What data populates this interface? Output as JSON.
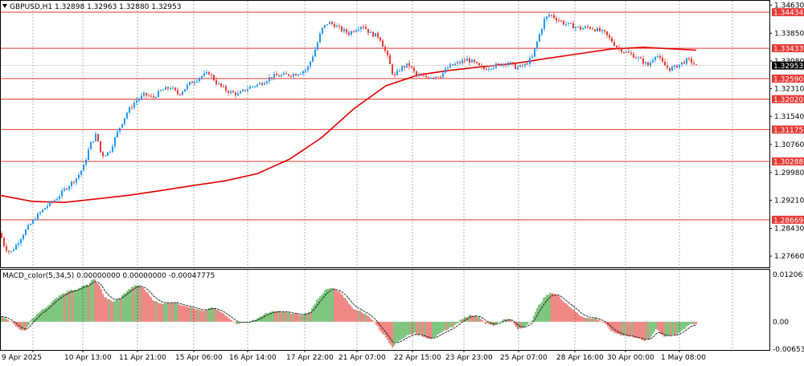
{
  "header": {
    "symbol_line": "GBPUSD,H1  1.32898 1.32963 1.32880 1.32953"
  },
  "chart_data": {
    "type": "candlestick",
    "price_axis": {
      "ylim": [
        1.2735,
        1.3475
      ],
      "tick_labels": [
        "1.34630",
        "1.33850",
        "1.33080",
        "1.32310",
        "1.31540",
        "1.30760",
        "1.29980",
        "1.29210",
        "1.28430",
        "1.27660"
      ],
      "tick_values": [
        1.3463,
        1.3385,
        1.3308,
        1.3231,
        1.3154,
        1.3076,
        1.2998,
        1.2921,
        1.2843,
        1.2766
      ]
    },
    "horizontal_levels": [
      {
        "label": "1.34434",
        "value": 1.34434
      },
      {
        "label": "1.33433",
        "value": 1.33433
      },
      {
        "label": "1.32590",
        "value": 1.3259
      },
      {
        "label": "1.32020",
        "value": 1.3202
      },
      {
        "label": "1.31175",
        "value": 1.31175
      },
      {
        "label": "1.30288",
        "value": 1.30288
      },
      {
        "label": "1.28669",
        "value": 1.28669
      }
    ],
    "current_price": {
      "label": "1.32953",
      "value": 1.32953
    },
    "time_labels": [
      "9 Apr 2025",
      "10 Apr 13:00",
      "11 Apr 21:00",
      "15 Apr 06:00",
      "16 Apr 14:00",
      "17 Apr 22:00",
      "21 Apr 07:00",
      "22 Apr 15:00",
      "23 Apr 23:00",
      "25 Apr 07:00",
      "28 Apr 16:00",
      "30 Apr 00:00",
      "1 May 08:00"
    ],
    "close_path": [
      [
        0,
        1.283
      ],
      [
        6,
        1.279
      ],
      [
        13,
        1.2775
      ],
      [
        21,
        1.28
      ],
      [
        31,
        1.2835
      ],
      [
        45,
        1.2875
      ],
      [
        58,
        1.2905
      ],
      [
        70,
        1.2925
      ],
      [
        82,
        1.2955
      ],
      [
        96,
        1.2985
      ],
      [
        104,
        1.3015
      ],
      [
        112,
        1.3075
      ],
      [
        120,
        1.3105
      ],
      [
        126,
        1.3045
      ],
      [
        136,
        1.3055
      ],
      [
        147,
        1.3115
      ],
      [
        158,
        1.3165
      ],
      [
        168,
        1.3195
      ],
      [
        180,
        1.3215
      ],
      [
        190,
        1.3205
      ],
      [
        200,
        1.3225
      ],
      [
        212,
        1.3235
      ],
      [
        222,
        1.3215
      ],
      [
        236,
        1.3245
      ],
      [
        250,
        1.3265
      ],
      [
        260,
        1.3275
      ],
      [
        270,
        1.3245
      ],
      [
        282,
        1.3225
      ],
      [
        296,
        1.3215
      ],
      [
        310,
        1.3235
      ],
      [
        324,
        1.3245
      ],
      [
        338,
        1.3265
      ],
      [
        352,
        1.3268
      ],
      [
        368,
        1.3272
      ],
      [
        382,
        1.3285
      ],
      [
        393,
        1.3345
      ],
      [
        400,
        1.3395
      ],
      [
        408,
        1.3415
      ],
      [
        416,
        1.3408
      ],
      [
        424,
        1.3395
      ],
      [
        434,
        1.3385
      ],
      [
        443,
        1.3398
      ],
      [
        451,
        1.3408
      ],
      [
        460,
        1.3385
      ],
      [
        472,
        1.3375
      ],
      [
        482,
        1.3318
      ],
      [
        490,
        1.3262
      ],
      [
        498,
        1.3288
      ],
      [
        508,
        1.3298
      ],
      [
        518,
        1.3268
      ],
      [
        528,
        1.3262
      ],
      [
        538,
        1.3265
      ],
      [
        548,
        1.3268
      ],
      [
        558,
        1.3292
      ],
      [
        570,
        1.3302
      ],
      [
        581,
        1.3312
      ],
      [
        590,
        1.3302
      ],
      [
        600,
        1.3285
      ],
      [
        610,
        1.3292
      ],
      [
        622,
        1.3298
      ],
      [
        632,
        1.3305
      ],
      [
        642,
        1.3289
      ],
      [
        652,
        1.3295
      ],
      [
        662,
        1.3318
      ],
      [
        670,
        1.3375
      ],
      [
        677,
        1.3422
      ],
      [
        684,
        1.3438
      ],
      [
        692,
        1.3425
      ],
      [
        702,
        1.3412
      ],
      [
        712,
        1.3405
      ],
      [
        722,
        1.3398
      ],
      [
        732,
        1.3402
      ],
      [
        742,
        1.3395
      ],
      [
        752,
        1.3385
      ],
      [
        760,
        1.3365
      ],
      [
        768,
        1.3345
      ],
      [
        776,
        1.3335
      ],
      [
        786,
        1.3325
      ],
      [
        796,
        1.3312
      ],
      [
        806,
        1.3295
      ],
      [
        816,
        1.3328
      ],
      [
        824,
        1.3302
      ],
      [
        832,
        1.3285
      ],
      [
        840,
        1.3292
      ],
      [
        848,
        1.3302
      ],
      [
        856,
        1.3312
      ],
      [
        866,
        1.3295
      ]
    ],
    "moving_average": [
      [
        0,
        1.2935
      ],
      [
        40,
        1.2918
      ],
      [
        80,
        1.2915
      ],
      [
        120,
        1.2925
      ],
      [
        160,
        1.2935
      ],
      [
        200,
        1.2948
      ],
      [
        240,
        1.2962
      ],
      [
        280,
        1.2975
      ],
      [
        320,
        1.2995
      ],
      [
        360,
        1.3035
      ],
      [
        400,
        1.3095
      ],
      [
        440,
        1.3175
      ],
      [
        480,
        1.3239
      ],
      [
        520,
        1.3269
      ],
      [
        560,
        1.3282
      ],
      [
        600,
        1.3292
      ],
      [
        640,
        1.3301
      ],
      [
        680,
        1.3315
      ],
      [
        720,
        1.3328
      ],
      [
        760,
        1.3341
      ],
      [
        800,
        1.3346
      ],
      [
        840,
        1.3341
      ],
      [
        866,
        1.3338
      ]
    ],
    "macd": {
      "label": "MACD_color(5,34,5) 0.00000000 0.00000000 -0.00047775",
      "ylim": [
        -0.00653,
        0.012061
      ],
      "tick_labels": [
        "0.0120612",
        "0.00",
        "-0.0065300"
      ],
      "tick_values": [
        0.0120612,
        0.0,
        -0.00653
      ],
      "histogram_path": [
        [
          0,
          0.0012
        ],
        [
          8,
          0.0009
        ],
        [
          16,
          -0.0004
        ],
        [
          24,
          -0.0018
        ],
        [
          32,
          -0.0022
        ],
        [
          38,
          0.0002
        ],
        [
          46,
          0.0018
        ],
        [
          56,
          0.0032
        ],
        [
          66,
          0.0048
        ],
        [
          76,
          0.0064
        ],
        [
          86,
          0.0072
        ],
        [
          96,
          0.0076
        ],
        [
          104,
          0.0083
        ],
        [
          110,
          0.0086
        ],
        [
          114,
          0.0095
        ],
        [
          118,
          0.0098
        ],
        [
          124,
          0.0082
        ],
        [
          130,
          0.0058
        ],
        [
          140,
          0.0046
        ],
        [
          150,
          0.0056
        ],
        [
          158,
          0.0072
        ],
        [
          166,
          0.0082
        ],
        [
          174,
          0.0085
        ],
        [
          182,
          0.0071
        ],
        [
          190,
          0.0052
        ],
        [
          198,
          0.0042
        ],
        [
          208,
          0.0044
        ],
        [
          216,
          0.0046
        ],
        [
          224,
          0.004
        ],
        [
          234,
          0.0036
        ],
        [
          244,
          0.0029
        ],
        [
          254,
          0.0024
        ],
        [
          262,
          0.0033
        ],
        [
          270,
          0.0028
        ],
        [
          278,
          0.0018
        ],
        [
          286,
          0.0008
        ],
        [
          294,
          -0.0004
        ],
        [
          304,
          -0.0002
        ],
        [
          314,
          0.0002
        ],
        [
          324,
          0.0012
        ],
        [
          334,
          0.0022
        ],
        [
          346,
          0.0024
        ],
        [
          356,
          0.0022
        ],
        [
          366,
          0.0018
        ],
        [
          376,
          0.0015
        ],
        [
          386,
          0.0024
        ],
        [
          396,
          0.0056
        ],
        [
          406,
          0.0075
        ],
        [
          414,
          0.0078
        ],
        [
          422,
          0.0068
        ],
        [
          430,
          0.0054
        ],
        [
          438,
          0.0032
        ],
        [
          446,
          0.0026
        ],
        [
          456,
          0.0016
        ],
        [
          464,
          0.0004
        ],
        [
          472,
          -0.0018
        ],
        [
          480,
          -0.0036
        ],
        [
          488,
          -0.0058
        ],
        [
          496,
          -0.0044
        ],
        [
          506,
          -0.0032
        ],
        [
          516,
          -0.0026
        ],
        [
          526,
          -0.0034
        ],
        [
          536,
          -0.0039
        ],
        [
          546,
          -0.003
        ],
        [
          556,
          -0.0018
        ],
        [
          566,
          -0.0008
        ],
        [
          576,
          0.0008
        ],
        [
          586,
          0.0017
        ],
        [
          596,
          0.0012
        ],
        [
          604,
          -0.0004
        ],
        [
          614,
          -0.0009
        ],
        [
          624,
          0.0004
        ],
        [
          634,
          0.0008
        ],
        [
          644,
          -0.0018
        ],
        [
          652,
          -0.0013
        ],
        [
          662,
          0.0006
        ],
        [
          670,
          0.0038
        ],
        [
          678,
          0.0058
        ],
        [
          686,
          0.0068
        ],
        [
          694,
          0.0061
        ],
        [
          702,
          0.0046
        ],
        [
          712,
          0.003
        ],
        [
          722,
          0.0014
        ],
        [
          732,
          0.0008
        ],
        [
          742,
          0.0008
        ],
        [
          752,
          -0.0004
        ],
        [
          762,
          -0.0024
        ],
        [
          772,
          -0.003
        ],
        [
          782,
          -0.0034
        ],
        [
          792,
          -0.0036
        ],
        [
          800,
          -0.0044
        ],
        [
          808,
          -0.004
        ],
        [
          816,
          -0.0016
        ],
        [
          826,
          -0.0034
        ],
        [
          834,
          -0.0033
        ],
        [
          842,
          -0.003
        ],
        [
          850,
          -0.0018
        ],
        [
          858,
          -0.0005
        ],
        [
          866,
          -0.0005
        ]
      ]
    },
    "colors": {
      "bull": "#2196f3",
      "bear": "#e53935",
      "level": "#e53935",
      "ma": "#e00000",
      "grid": "#9e9e9e",
      "macd_up": "#2ca02c",
      "macd_down": "#e53935",
      "signal": "#000000"
    }
  }
}
